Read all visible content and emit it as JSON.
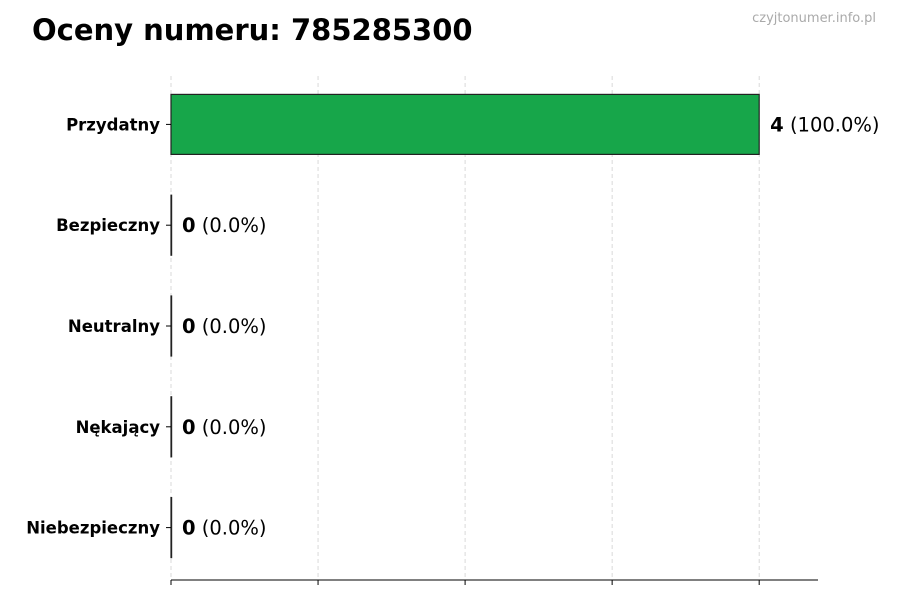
{
  "chart_data": {
    "type": "bar",
    "orientation": "horizontal",
    "title": "Oceny numeru: 785285300",
    "watermark": "czyjtonumer.info.pl",
    "categories": [
      "Przydatny",
      "Bezpieczny",
      "Neutralny",
      "Nękający",
      "Niebezpieczny"
    ],
    "values": [
      4,
      0,
      0,
      0,
      0
    ],
    "value_labels": [
      "4",
      "0",
      "0",
      "0",
      "0"
    ],
    "percent_labels": [
      "(100.0%)",
      "(0.0%)",
      "(0.0%)",
      "(0.0%)",
      "(0.0%)"
    ],
    "xlim": [
      0,
      4.4
    ],
    "xticks": [
      0,
      1,
      2,
      3,
      4
    ],
    "xlabel": "",
    "ylabel": "",
    "grid": "x dashed",
    "colors": {
      "bar": "#17a64a",
      "edge": "#222222",
      "grid": "#d0d0d0",
      "watermark": "#aaaaaa"
    }
  }
}
